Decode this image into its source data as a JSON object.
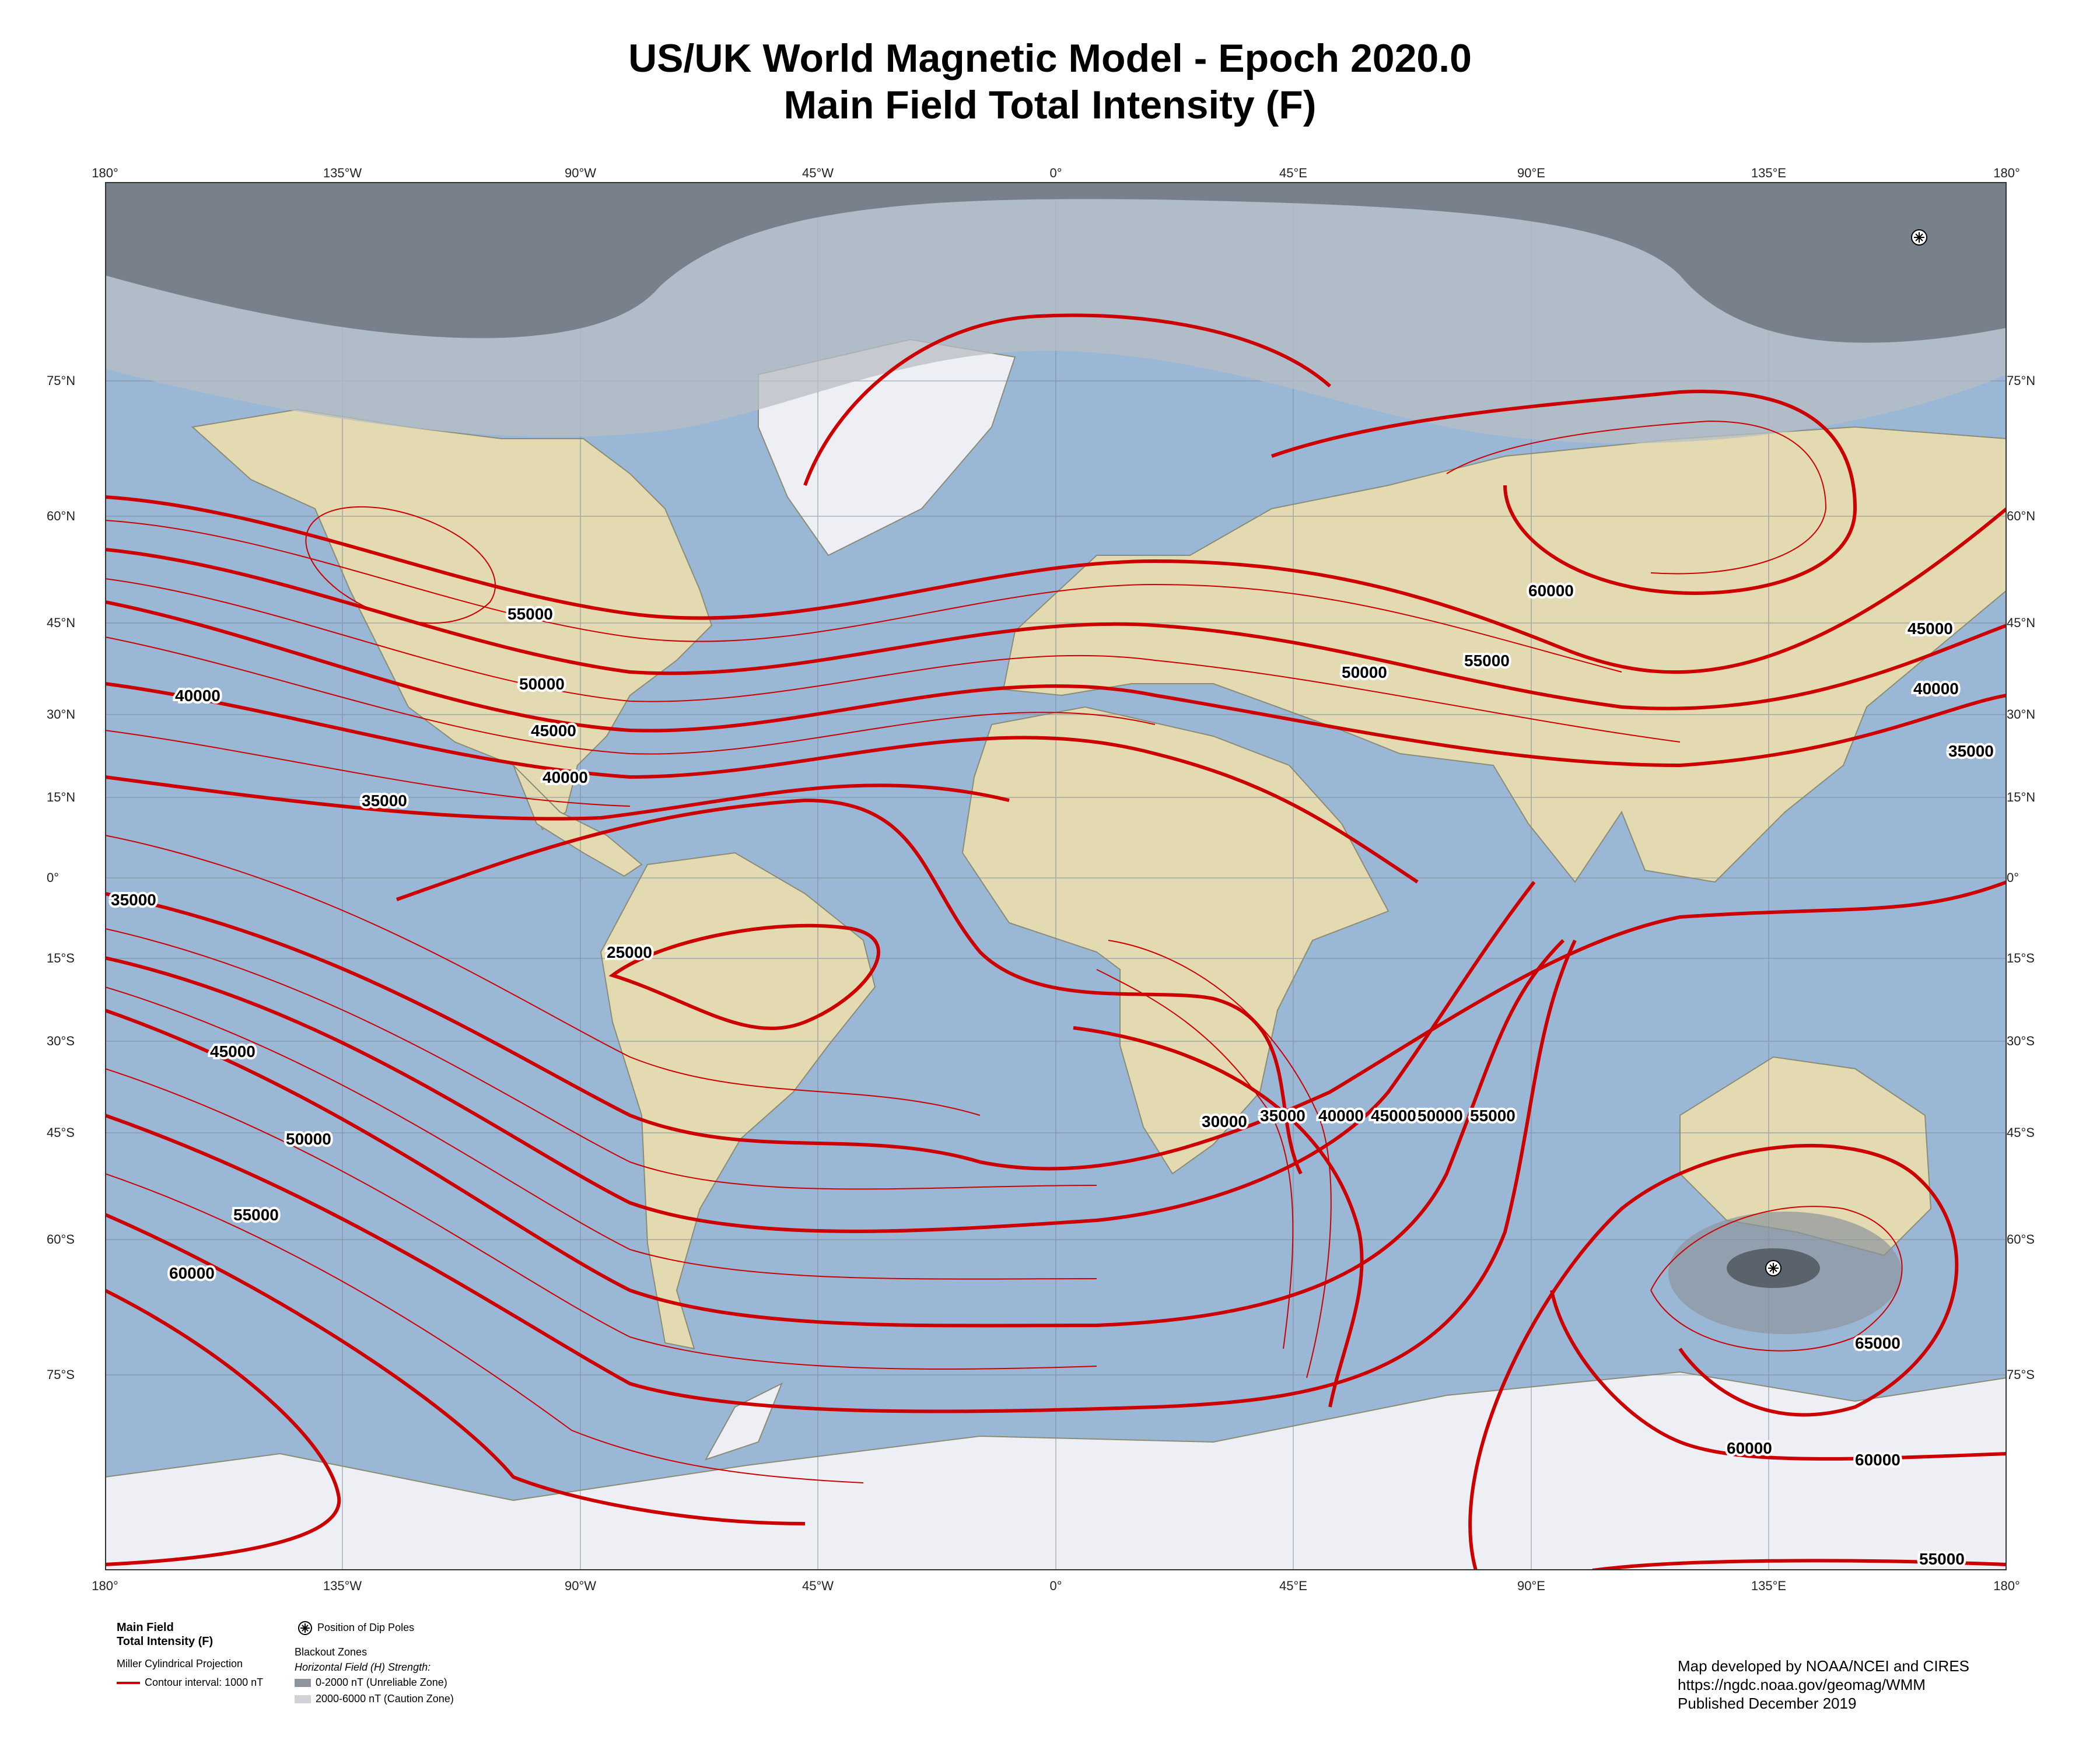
{
  "title": "US/UK World Magnetic Model - Epoch 2020.0",
  "subtitle": "Main Field Total Intensity (F)",
  "longitude_ticks": [
    "180°",
    "135°W",
    "90°W",
    "45°W",
    "0°",
    "45°E",
    "90°E",
    "135°E",
    "180°"
  ],
  "latitude_ticks": [
    "75°N",
    "60°N",
    "45°N",
    "30°N",
    "15°N",
    "0°",
    "15°S",
    "30°S",
    "45°S",
    "60°S",
    "75°S"
  ],
  "contour_labels": [
    "55000",
    "50000",
    "45000",
    "40000",
    "35000",
    "40000",
    "60000",
    "55000",
    "50000",
    "45000",
    "40000",
    "35000",
    "35000",
    "25000",
    "45000",
    "50000",
    "55000",
    "60000",
    "30000",
    "35000",
    "40000",
    "45000",
    "50000",
    "55000",
    "65000",
    "60000",
    "60000",
    "55000"
  ],
  "legend": {
    "heading_line1": "Main Field",
    "heading_line2": "Total Intensity (F)",
    "projection": "Miller Cylindrical Projection",
    "contour_interval": "Contour interval: 1000 nT",
    "dip_poles": "Position of Dip Poles",
    "blackout_title": "Blackout Zones",
    "blackout_subtitle": "Horizontal Field (H) Strength:",
    "unreliable": "0-2000 nT (Unreliable Zone)",
    "caution": "2000-6000 nT (Caution Zone)"
  },
  "credits": {
    "line1": "Map developed by NOAA/NCEI and CIRES",
    "line2": "https://ngdc.noaa.gov/geomag/WMM",
    "line3": "Published December 2019"
  },
  "colors": {
    "ocean": "#9bb7d6",
    "land": "#e8dcb0",
    "ice": "#f2f3f6",
    "contour": "#cc0000",
    "unreliable_zone": "#6f7680",
    "caution_zone": "#b8bdc4"
  },
  "icons": [
    "dip-pole-icon"
  ]
}
